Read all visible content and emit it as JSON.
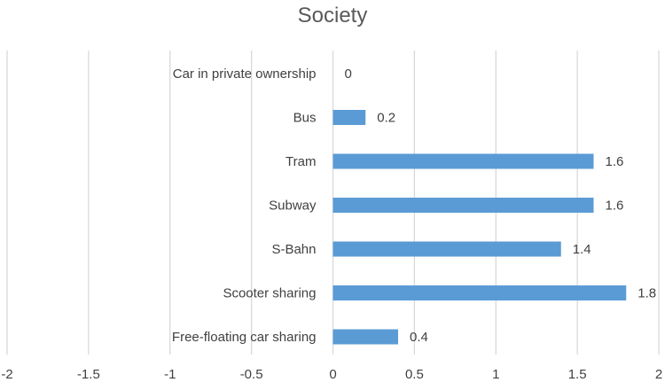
{
  "chart_data": {
    "type": "bar",
    "orientation": "horizontal",
    "title": "Society",
    "categories": [
      "Car in private ownership",
      "Bus",
      "Tram",
      "Subway",
      "S-Bahn",
      "Scooter sharing",
      "Free-floating car sharing"
    ],
    "values": [
      0,
      0.2,
      1.6,
      1.6,
      1.4,
      1.8,
      0.4
    ],
    "data_labels": [
      "0",
      "0.2",
      "1.6",
      "1.6",
      "1.4",
      "1.8",
      "0.4"
    ],
    "xlim": [
      -2,
      2
    ],
    "xticks": [
      -2,
      -1.5,
      -1,
      -0.5,
      0,
      0.5,
      1,
      1.5,
      2
    ],
    "xtick_labels": [
      "-2",
      "-1.5",
      "-1",
      "-0.5",
      "0",
      "0.5",
      "1",
      "1.5",
      "2"
    ],
    "grid": "vertical",
    "legend": "none",
    "xlabel": "",
    "ylabel": "",
    "bar_color": "#5b9bd5",
    "grid_color": "#d9d9d9"
  }
}
